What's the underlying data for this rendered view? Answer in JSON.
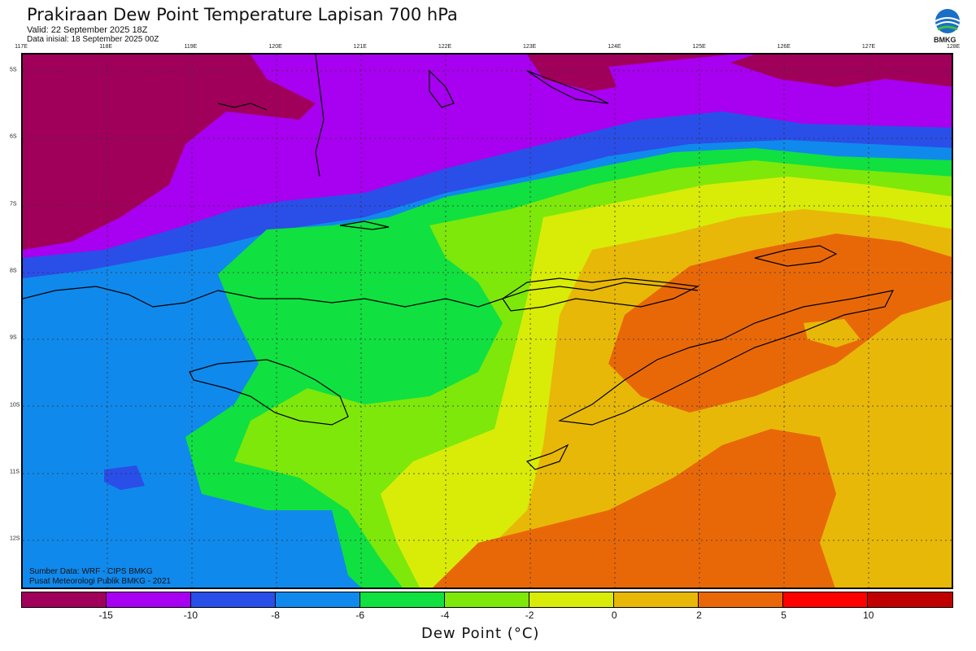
{
  "header": {
    "title": "Prakiraan Dew Point Temperature Lapisan 700 hPa",
    "valid": "Valid: 22 September 2025 18Z",
    "init": "Data inisial: 18 September 2025 00Z"
  },
  "logo": {
    "icon": "bmkg-logo-icon",
    "text": "BMKG"
  },
  "map": {
    "lon_labels": [
      "117E",
      "118E",
      "119E",
      "120E",
      "121E",
      "122E",
      "123E",
      "124E",
      "125E",
      "126E",
      "127E",
      "128E"
    ],
    "lat_labels": [
      "5S",
      "6S",
      "7S",
      "8S",
      "9S",
      "10S",
      "11S",
      "12S"
    ]
  },
  "source": {
    "line1": "Sumber Data: WRF - CIPS BMKG",
    "line2": "Pusat Meteorologi Publik BMKG - 2021"
  },
  "colorbar": {
    "colors": [
      "#a0005a",
      "#a800f0",
      "#2a4ee8",
      "#1089ec",
      "#10e040",
      "#7ee80a",
      "#d8ec08",
      "#e8b808",
      "#e86808",
      "#ff0000",
      "#c00000"
    ],
    "labels": [
      "-15",
      "-10",
      "-8",
      "-6",
      "-4",
      "-2",
      "0",
      "2",
      "5",
      "10"
    ],
    "units_label": "Dew Point (°C)"
  }
}
